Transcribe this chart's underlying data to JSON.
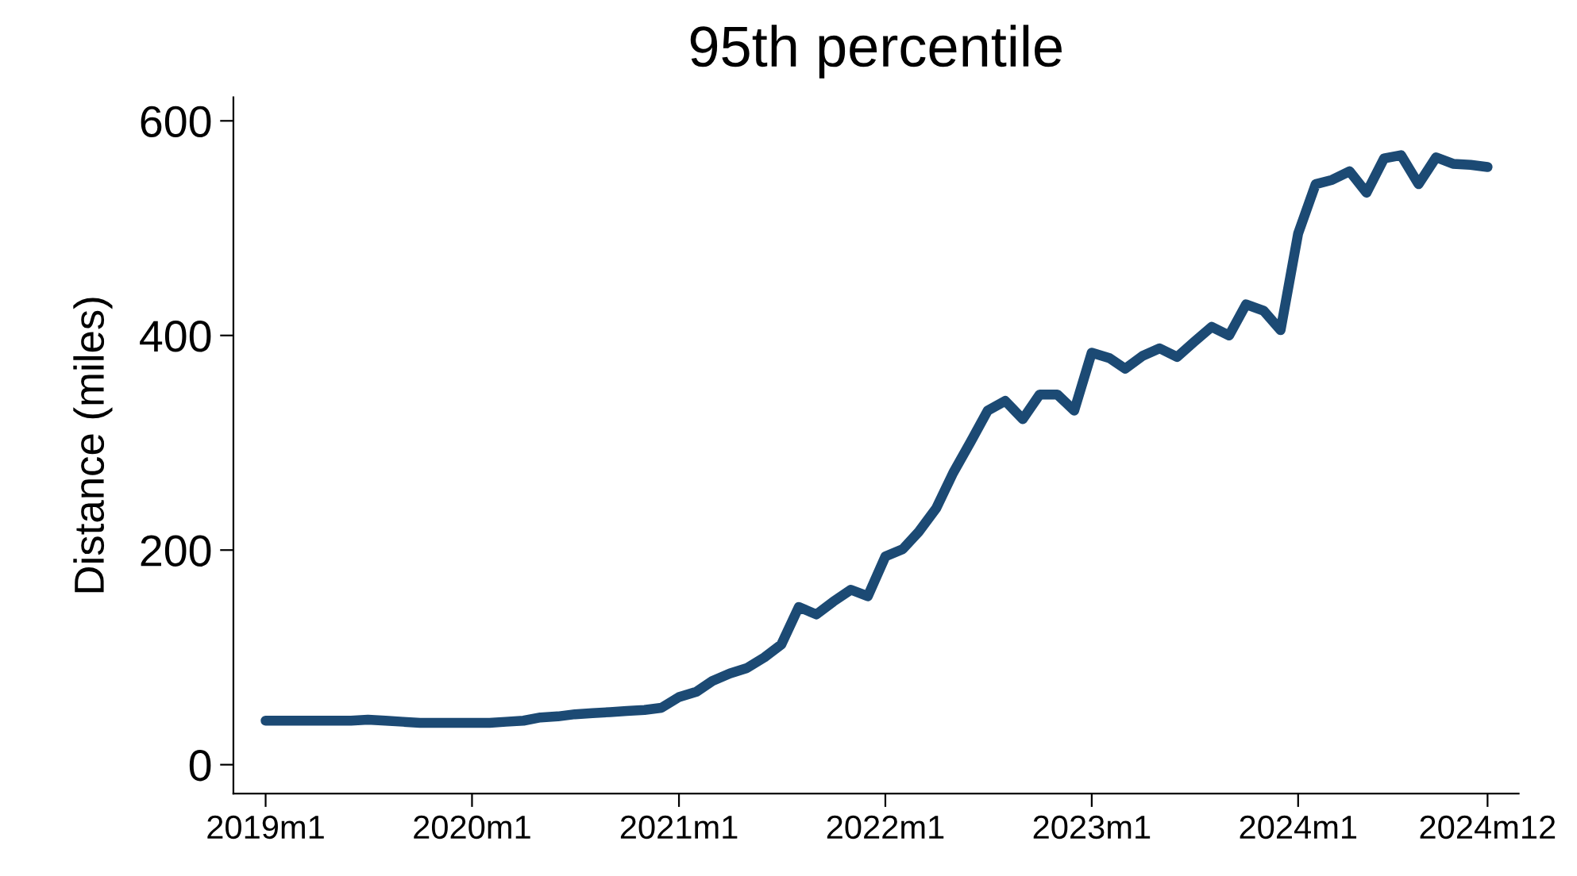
{
  "chart_data": {
    "type": "line",
    "title": "95th percentile",
    "ylabel": "Distance (miles)",
    "x": [
      "2019-01",
      "2019-02",
      "2019-03",
      "2019-04",
      "2019-05",
      "2019-06",
      "2019-07",
      "2019-08",
      "2019-09",
      "2019-10",
      "2019-11",
      "2019-12",
      "2020-01",
      "2020-02",
      "2020-03",
      "2020-04",
      "2020-05",
      "2020-06",
      "2020-07",
      "2020-08",
      "2020-09",
      "2020-10",
      "2020-11",
      "2020-12",
      "2021-01",
      "2021-02",
      "2021-03",
      "2021-04",
      "2021-05",
      "2021-06",
      "2021-07",
      "2021-08",
      "2021-09",
      "2021-10",
      "2021-11",
      "2021-12",
      "2022-01",
      "2022-02",
      "2022-03",
      "2022-04",
      "2022-05",
      "2022-06",
      "2022-07",
      "2022-08",
      "2022-09",
      "2022-10",
      "2022-11",
      "2022-12",
      "2023-01",
      "2023-02",
      "2023-03",
      "2023-04",
      "2023-05",
      "2023-06",
      "2023-07",
      "2023-08",
      "2023-09",
      "2023-10",
      "2023-11",
      "2023-12",
      "2024-01",
      "2024-02",
      "2024-03",
      "2024-04",
      "2024-05",
      "2024-06",
      "2024-07",
      "2024-08",
      "2024-09",
      "2024-10",
      "2024-11",
      "2024-12"
    ],
    "series": [
      {
        "color": "#1c4a74",
        "values": [
          41,
          41,
          41,
          41,
          41,
          41,
          42,
          41,
          40,
          39,
          39,
          39,
          39,
          39,
          40,
          41,
          44,
          45,
          47,
          48,
          49,
          50,
          51,
          53,
          63,
          68,
          78,
          85,
          90,
          100,
          112,
          147,
          140,
          152,
          163,
          157,
          194,
          201,
          217,
          239,
          272,
          301,
          330,
          339,
          322,
          345,
          345,
          330,
          384,
          379,
          369,
          381,
          388,
          380,
          394,
          408,
          400,
          429,
          423,
          405,
          495,
          541,
          545,
          553,
          533,
          565,
          568,
          541,
          566,
          560,
          559,
          557
        ]
      }
    ],
    "xlim": [
      "2018-11-05",
      "2025-01-25"
    ],
    "xticks": [
      {
        "value": "2019-01",
        "label": "2019m1"
      },
      {
        "value": "2020-01",
        "label": "2020m1"
      },
      {
        "value": "2021-01",
        "label": "2021m1"
      },
      {
        "value": "2022-01",
        "label": "2022m1"
      },
      {
        "value": "2023-01",
        "label": "2023m1"
      },
      {
        "value": "2024-01",
        "label": "2024m1"
      },
      {
        "value": "2024-12",
        "label": "2024m12"
      }
    ],
    "ylim": [
      -27,
      622
    ],
    "yticks": [
      0,
      200,
      400,
      600
    ],
    "grid": false,
    "marker": "none",
    "line_style": "solid"
  }
}
